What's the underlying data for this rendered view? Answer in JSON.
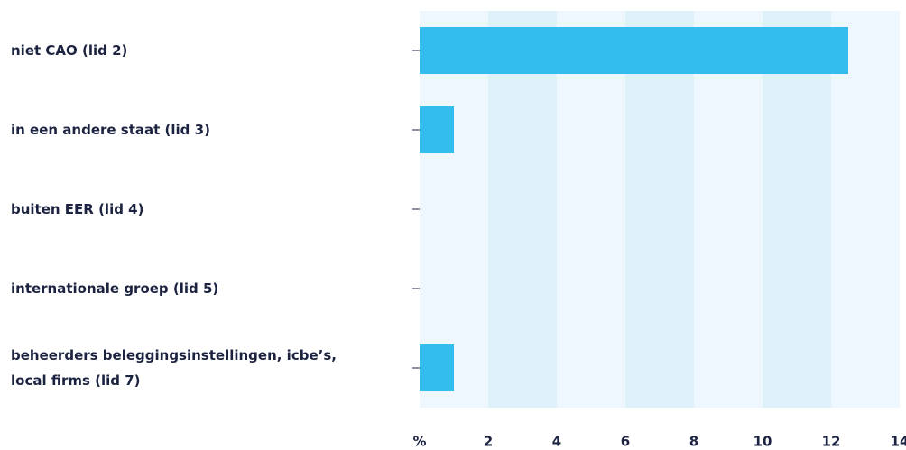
{
  "chart_data": {
    "type": "hbar",
    "categories": [
      "niet CAO (lid 2)",
      "in een andere staat (lid 3)",
      "buiten EER (lid 4)",
      "internationale groep (lid 5)",
      "beheerders beleggingsinstellingen, icbe’s, local firms (lid 7)"
    ],
    "values": [
      12.5,
      1,
      0,
      0,
      1
    ],
    "color": "#33bdef",
    "xlim": [
      0,
      14
    ],
    "xticks": [
      {
        "value": 0,
        "label": "%"
      },
      2,
      4,
      6,
      8,
      10,
      12,
      14
    ]
  }
}
